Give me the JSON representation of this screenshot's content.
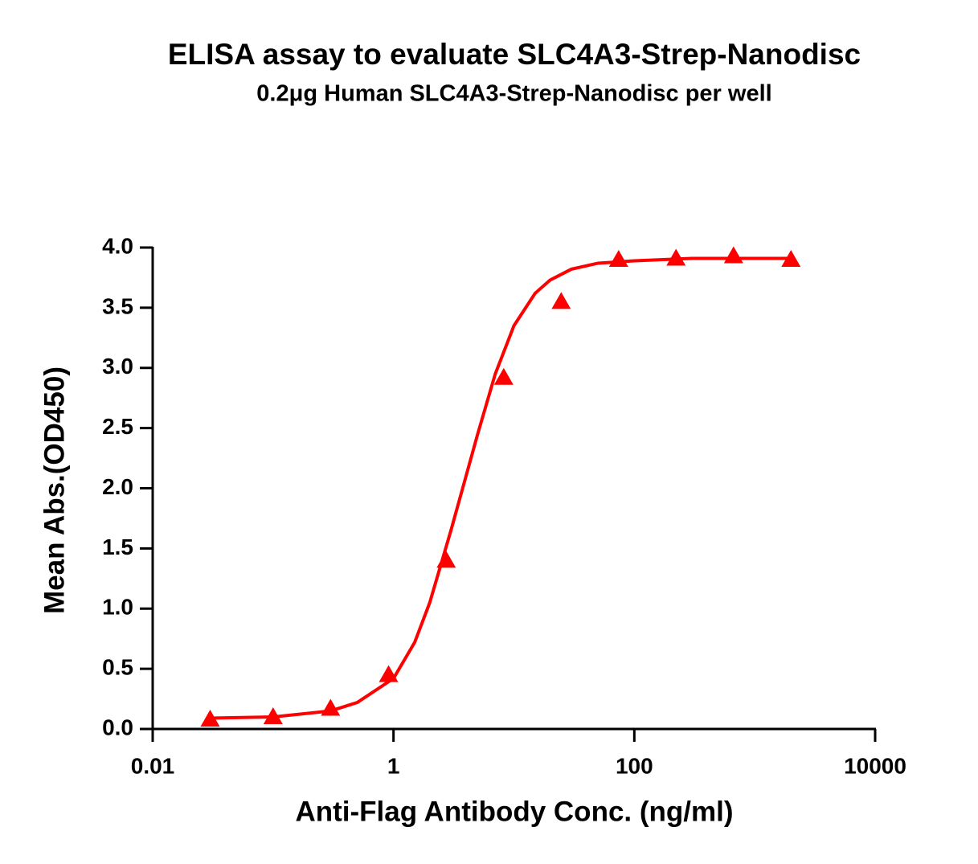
{
  "chart_data": {
    "type": "scatter",
    "title": "ELISA assay to evaluate SLC4A3-Strep-Nanodisc",
    "subtitle": "0.2μg Human SLC4A3-Strep-Nanodisc per well",
    "xlabel": "Anti-Flag Antibody Conc. (ng/ml)",
    "ylabel": "Mean Abs.(OD450)",
    "xscale": "log",
    "xlim": [
      0.01,
      10000
    ],
    "xticks": [
      0.01,
      1,
      100,
      10000
    ],
    "ylim": [
      0,
      4
    ],
    "yticks": [
      {
        "value": 0,
        "label": "0.0"
      },
      {
        "value": 0.5,
        "label": "0.5"
      },
      {
        "value": 1,
        "label": "1.0"
      },
      {
        "value": 1.5,
        "label": "1.5"
      },
      {
        "value": 2,
        "label": "2.0"
      },
      {
        "value": 2.5,
        "label": "2.5"
      },
      {
        "value": 3,
        "label": "3.0"
      },
      {
        "value": 3.5,
        "label": "3.5"
      },
      {
        "value": 4,
        "label": "4.0"
      }
    ],
    "series": [
      {
        "type": "scatter",
        "marker": "triangle",
        "color": "#ff0000",
        "x": [
          0.03,
          0.1,
          0.3,
          0.91,
          2.74,
          8.23,
          24.7,
          74.1,
          222,
          667,
          2000
        ],
        "values": [
          0.08,
          0.1,
          0.17,
          0.45,
          1.4,
          2.92,
          3.55,
          3.9,
          3.91,
          3.93,
          3.9
        ]
      },
      {
        "type": "line",
        "color": "#ff0000",
        "x": [
          0.03,
          0.1,
          0.3,
          0.5,
          1,
          1.5,
          2,
          3,
          4,
          5,
          7,
          10,
          15,
          20,
          30,
          50,
          100,
          300,
          2000
        ],
        "values": [
          0.09,
          0.1,
          0.15,
          0.22,
          0.42,
          0.72,
          1.05,
          1.65,
          2.1,
          2.45,
          2.95,
          3.35,
          3.62,
          3.73,
          3.82,
          3.87,
          3.89,
          3.91,
          3.91
        ]
      }
    ]
  }
}
